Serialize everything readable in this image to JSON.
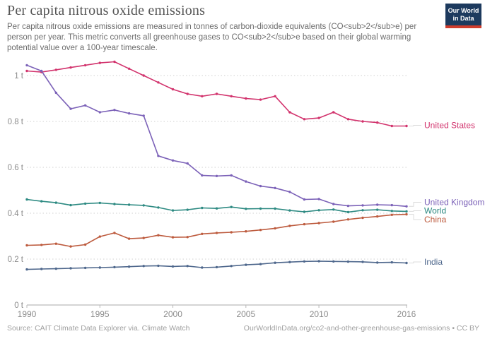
{
  "header": {
    "title": "Per capita nitrous oxide emissions",
    "subtitle_lines": [
      "Per capita nitrous oxide emissions are measured in tonnes of carbon-dioxide equivalents (CO<sub>2</sub>e) per",
      "person per year. This metric converts all greenhouse gases to CO<sub>2</sub>e based on their global warming",
      "potential value over a 100-year timescale."
    ],
    "logo": {
      "line1": "Our World",
      "line2": "in Data",
      "bg_color": "#1d3a5e",
      "accent_color": "#cf3c2c"
    }
  },
  "chart_data": {
    "type": "line",
    "title": "Per capita nitrous oxide emissions",
    "unit": "tonnes CO2e per person",
    "grid": "horizontal dotted",
    "legend_position": "right of line ends",
    "x": [
      1990,
      1991,
      1992,
      1993,
      1994,
      1995,
      1996,
      1997,
      1998,
      1999,
      2000,
      2001,
      2002,
      2003,
      2004,
      2005,
      2006,
      2007,
      2008,
      2009,
      2010,
      2011,
      2012,
      2013,
      2014,
      2015,
      2016
    ],
    "x_ticks": [
      1990,
      1995,
      2000,
      2005,
      2010,
      2016
    ],
    "y_ticks": [
      0,
      0.2,
      0.4,
      0.6,
      0.8,
      1
    ],
    "y_tick_labels": [
      "0 t",
      "0.2 t",
      "0.4 t",
      "0.6 t",
      "0.8 t",
      "1 t"
    ],
    "ylim": [
      0,
      1.1
    ],
    "series": [
      {
        "name": "United States",
        "color": "#d2336d",
        "values": [
          1.02,
          1.015,
          1.025,
          1.035,
          1.045,
          1.055,
          1.06,
          1.03,
          1.0,
          0.97,
          0.94,
          0.92,
          0.91,
          0.92,
          0.91,
          0.9,
          0.895,
          0.91,
          0.84,
          0.81,
          0.815,
          0.84,
          0.81,
          0.8,
          0.795,
          0.78,
          0.78
        ]
      },
      {
        "name": "United Kingdom",
        "color": "#7c62b8",
        "values": [
          1.045,
          1.02,
          0.925,
          0.855,
          0.87,
          0.84,
          0.85,
          0.835,
          0.825,
          0.65,
          0.63,
          0.617,
          0.565,
          0.562,
          0.565,
          0.538,
          0.518,
          0.51,
          0.493,
          0.46,
          0.462,
          0.44,
          0.432,
          0.434,
          0.437,
          0.435,
          0.43
        ]
      },
      {
        "name": "World",
        "color": "#2d8a82",
        "values": [
          0.46,
          0.452,
          0.446,
          0.435,
          0.442,
          0.445,
          0.44,
          0.437,
          0.434,
          0.425,
          0.412,
          0.415,
          0.423,
          0.421,
          0.427,
          0.419,
          0.42,
          0.42,
          0.412,
          0.406,
          0.413,
          0.416,
          0.405,
          0.413,
          0.415,
          0.41,
          0.408
        ]
      },
      {
        "name": "China",
        "color": "#bd5b3e",
        "values": [
          0.26,
          0.262,
          0.267,
          0.255,
          0.263,
          0.298,
          0.314,
          0.289,
          0.292,
          0.304,
          0.295,
          0.296,
          0.31,
          0.314,
          0.317,
          0.321,
          0.327,
          0.334,
          0.345,
          0.352,
          0.357,
          0.363,
          0.373,
          0.38,
          0.386,
          0.393,
          0.395
        ]
      },
      {
        "name": "India",
        "color": "#4e678c",
        "values": [
          0.155,
          0.157,
          0.158,
          0.16,
          0.162,
          0.163,
          0.165,
          0.167,
          0.17,
          0.171,
          0.168,
          0.17,
          0.163,
          0.165,
          0.17,
          0.175,
          0.178,
          0.184,
          0.187,
          0.19,
          0.191,
          0.19,
          0.189,
          0.188,
          0.185,
          0.186,
          0.183
        ]
      }
    ]
  },
  "footer": {
    "source": "Source: CAIT Climate Data Explorer via. Climate Watch",
    "attribution": "OurWorldInData.org/co2-and-other-greenhouse-gas-emissions • CC BY"
  }
}
